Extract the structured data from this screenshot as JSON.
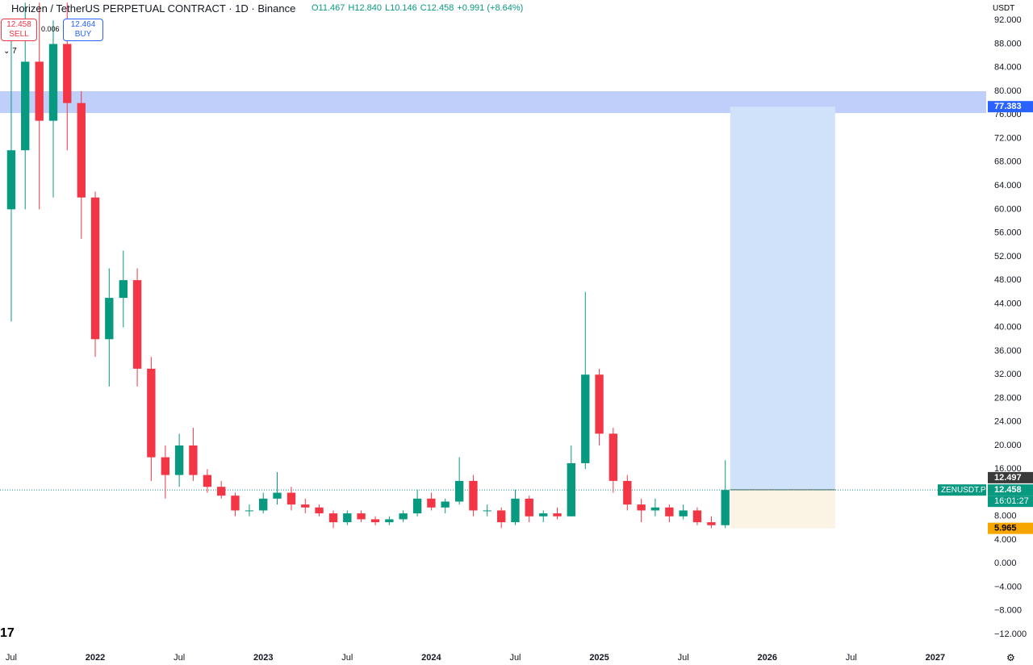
{
  "header": {
    "title": "Horizen / TetherUS PERPETUAL CONTRACT · 1D · Binance",
    "ohlc": [
      "O11.467",
      "H12.840",
      "L10.146",
      "C12.458",
      "+0.991 (+8.64%)"
    ]
  },
  "trade_panel": {
    "sell_price": "12.458",
    "sell_label": "SELL",
    "spread": "0.006",
    "buy_price": "12.464",
    "buy_label": "BUY",
    "indicator_count": "7"
  },
  "currency": "USDT",
  "chart_data": {
    "type": "candlestick",
    "x": [
      2021.5,
      2021.583,
      2021.667,
      2021.75,
      2021.833,
      2021.917,
      2022,
      2022.083,
      2022.167,
      2022.25,
      2022.333,
      2022.417,
      2022.5,
      2022.583,
      2022.667,
      2022.75,
      2022.833,
      2022.917,
      2023,
      2023.083,
      2023.167,
      2023.25,
      2023.333,
      2023.417,
      2023.5,
      2023.583,
      2023.667,
      2023.75,
      2023.833,
      2023.917,
      2024,
      2024.083,
      2024.167,
      2024.25,
      2024.333,
      2024.417,
      2024.5,
      2024.583,
      2024.667,
      2024.75,
      2024.833,
      2024.917,
      2025,
      2025.083,
      2025.167,
      2025.25,
      2025.333,
      2025.417,
      2025.5,
      2025.583,
      2025.667,
      2025.75
    ],
    "open": [
      60,
      70,
      85,
      75,
      88,
      78,
      62,
      38,
      45,
      48,
      33,
      18,
      15,
      20,
      15,
      13,
      11.5,
      9,
      9,
      11,
      12,
      10,
      9.5,
      8.5,
      7,
      8.5,
      7.5,
      7,
      7.5,
      8.5,
      11,
      9.5,
      10.5,
      14,
      9,
      9,
      7,
      11,
      8,
      8.5,
      8,
      17,
      32,
      22,
      14,
      10,
      9,
      9.5,
      8,
      9,
      7,
      6.5
    ],
    "high": [
      92,
      95,
      95,
      92,
      95,
      80,
      63,
      50,
      53,
      50,
      35,
      20,
      22,
      23,
      16,
      14,
      12,
      10,
      12,
      15.5,
      13,
      11,
      10,
      9,
      9,
      9,
      8,
      8,
      9,
      12.5,
      12,
      11,
      18,
      15,
      10,
      9.5,
      12.5,
      11.5,
      9,
      9.5,
      20,
      46,
      33,
      23,
      15,
      11,
      11,
      10,
      10,
      9.5,
      8,
      17.5
    ],
    "low": [
      41,
      60,
      60,
      62,
      70,
      55,
      35,
      30,
      40,
      30,
      14,
      11,
      13,
      14,
      12,
      11,
      8,
      8,
      8.5,
      10,
      9,
      8.5,
      8,
      6,
      6.5,
      7,
      6.5,
      6.5,
      7,
      8,
      9,
      8.5,
      10,
      8,
      8,
      6,
      6.5,
      7,
      7,
      7.5,
      8,
      16,
      20,
      12,
      9,
      7,
      8,
      7,
      7.5,
      6.5,
      6,
      6
    ],
    "close": [
      70,
      85,
      75,
      88,
      78,
      62,
      38,
      45,
      48,
      33,
      18,
      15,
      20,
      15,
      13,
      11.5,
      9,
      9,
      11,
      12,
      10,
      9.5,
      8.5,
      7,
      8.5,
      7.5,
      7,
      7.5,
      8.5,
      11,
      9.5,
      10.5,
      14,
      9,
      9,
      7,
      11,
      8,
      8.5,
      8,
      17,
      32,
      22,
      14,
      10,
      9,
      9.5,
      8,
      9,
      7,
      6.5,
      12.458
    ],
    "up_color": "#089981",
    "down_color": "#f23645",
    "xlim": [
      2021.433,
      2027.303
    ],
    "ylim": [
      -13.9,
      95.45
    ],
    "xticks": [
      {
        "value": 2021.5,
        "label": "Jul"
      },
      2022,
      {
        "value": 2022.5,
        "label": "Jul"
      },
      2023,
      {
        "value": 2023.5,
        "label": "Jul"
      },
      2024,
      {
        "value": 2024.5,
        "label": "Jul"
      },
      2025,
      {
        "value": 2025.5,
        "label": "Jul"
      },
      2026,
      {
        "value": 2026.5,
        "label": "Jul"
      },
      2027
    ],
    "yticks": [
      {
        "value": 92,
        "label": "92.000"
      },
      {
        "value": 88,
        "label": "88.000"
      },
      {
        "value": 84,
        "label": "84.000"
      },
      {
        "value": 80,
        "label": "80.000"
      },
      {
        "value": 76,
        "label": "76.000"
      },
      {
        "value": 72,
        "label": "72.000"
      },
      {
        "value": 68,
        "label": "68.000"
      },
      {
        "value": 64,
        "label": "64.000"
      },
      {
        "value": 60,
        "label": "60.000"
      },
      {
        "value": 56,
        "label": "56.000"
      },
      {
        "value": 52,
        "label": "52.000"
      },
      {
        "value": 48,
        "label": "48.000"
      },
      {
        "value": 44,
        "label": "44.000"
      },
      {
        "value": 40,
        "label": "40.000"
      },
      {
        "value": 36,
        "label": "36.000"
      },
      {
        "value": 32,
        "label": "32.000"
      },
      {
        "value": 28,
        "label": "28.000"
      },
      {
        "value": 24,
        "label": "24.000"
      },
      {
        "value": 20,
        "label": "20.000"
      },
      {
        "value": 16,
        "label": "16.000"
      },
      {
        "value": 8,
        "label": "8.000"
      },
      {
        "value": 4,
        "label": "4.000"
      },
      {
        "value": 0,
        "label": "0.000"
      },
      {
        "value": -4,
        "label": "−4.000"
      },
      {
        "value": -8,
        "label": "−8.000"
      },
      {
        "value": -12,
        "label": "−12.000"
      }
    ],
    "zone": {
      "range": [
        76.3,
        80
      ],
      "color": "#a9bff8"
    },
    "position": {
      "x": [
        2025.779,
        2026.404
      ],
      "target": 77.383,
      "entry": 12.497,
      "stop": 5.965,
      "profit_color": "#cfe2fa",
      "loss_color": "#fbf3e4"
    },
    "last_price": {
      "value": 12.458,
      "symbol": "ZENUSDT.P",
      "countdown": "16:01:27"
    }
  }
}
